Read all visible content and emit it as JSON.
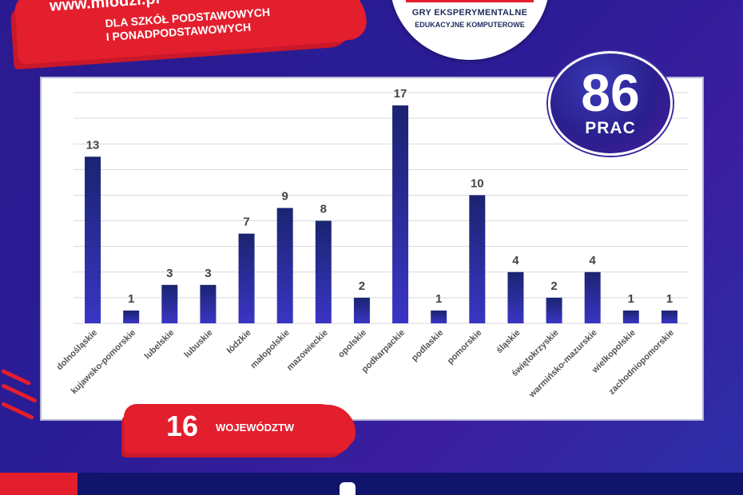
{
  "header": {
    "url": "www.mlodzi.pl",
    "slogan_line1": "DLA SZKÓŁ PODSTAWOWYCH",
    "slogan_line2": "I PONADPODSTAWOWYCH"
  },
  "logo": {
    "line1": "GRY EKSPERYMENTALNE",
    "line2": "EDUKACYJNE KOMPUTEROWE"
  },
  "badge": {
    "number": "86",
    "label": "PRAC"
  },
  "regions": {
    "count": "16",
    "label": "WOJEWÓDZTW"
  },
  "colors": {
    "accent_red": "#e31e2d",
    "bar_top": "#1a2470",
    "bar_bottom": "#3a35c4",
    "background": "#2b1a8f"
  },
  "chart_data": {
    "type": "bar",
    "categories": [
      "dolnośląskie",
      "kujawsko-pomorskie",
      "lubelskie",
      "lubuskie",
      "łódzkie",
      "małopolskie",
      "mazowieckie",
      "opolskie",
      "podkarpackie",
      "podlaskie",
      "pomorskie",
      "śląskie",
      "świętokrzyskie",
      "warmińsko-mazurskie",
      "wielkopolskie",
      "zachodniopomorskie"
    ],
    "values": [
      13,
      1,
      3,
      3,
      7,
      9,
      8,
      2,
      17,
      1,
      10,
      4,
      2,
      4,
      1,
      1
    ],
    "ylim": [
      0,
      18
    ],
    "grid": true,
    "data_labels": true
  }
}
